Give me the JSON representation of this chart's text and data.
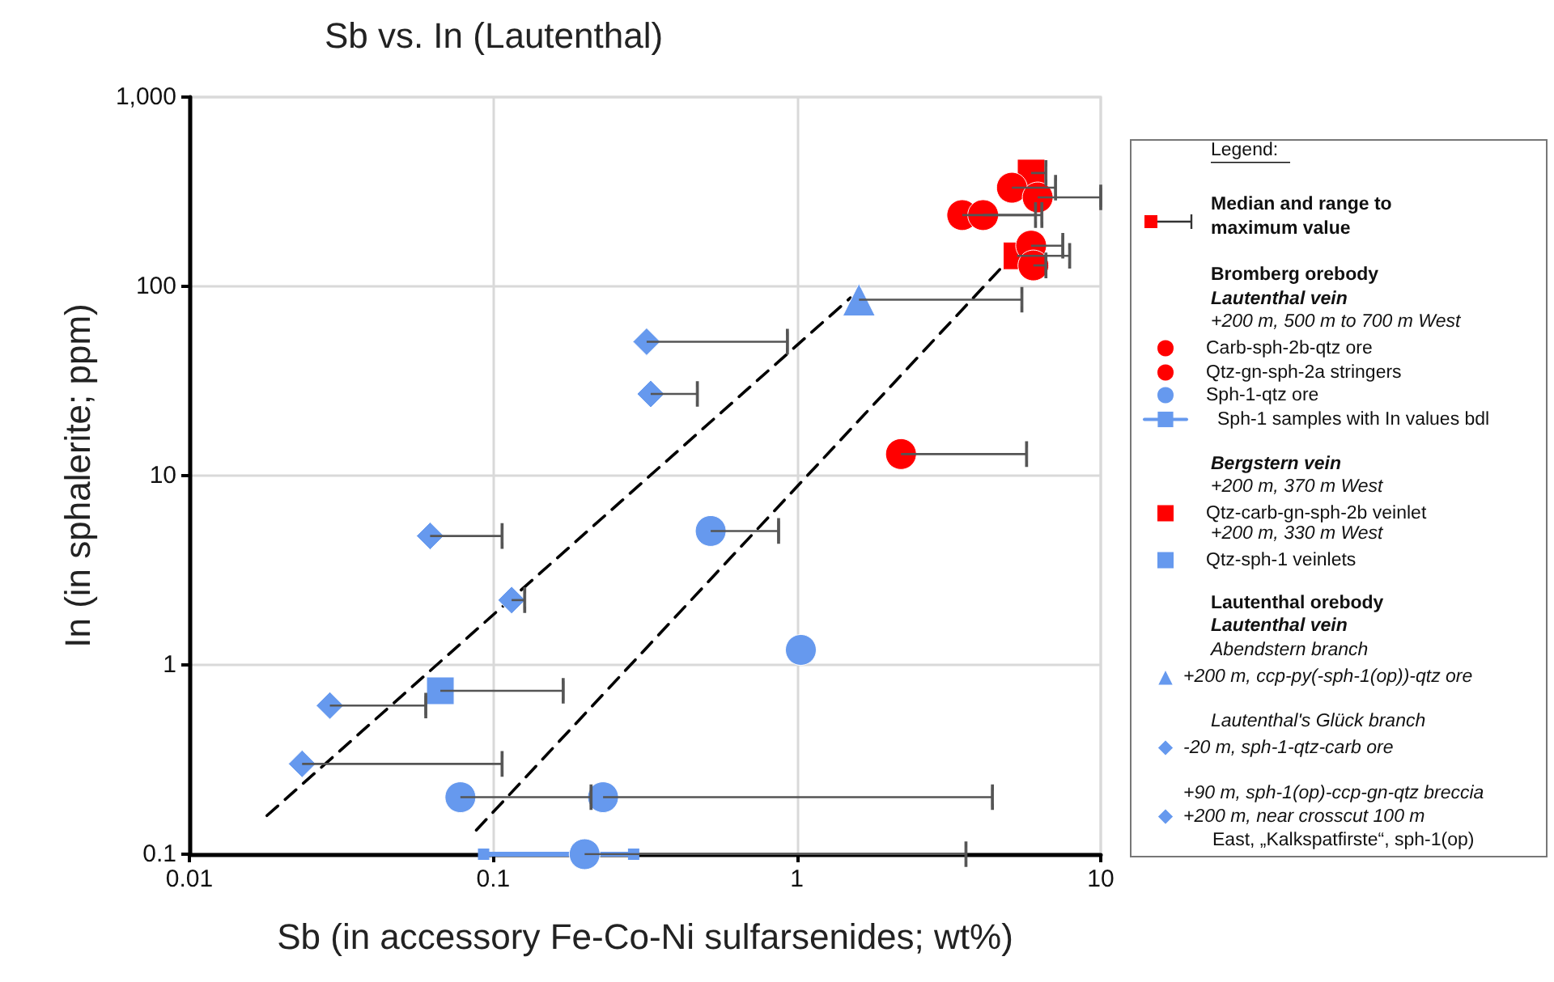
{
  "chart_data": {
    "type": "scatter",
    "title": "Sb vs. In (Lautenthal)",
    "xlabel": "Sb (in accessory Fe-Co-Ni sulfarsenides; wt%)",
    "ylabel": "In (in sphalerite; ppm)",
    "legend_title": "Legend:",
    "annotations": [
      "Median and range to maximum value",
      "Bromberg orebody",
      "Lautenthal vein",
      "+200 m, 500 m to 700 m West",
      "Bergstern vein",
      "+200 m, 370 m West",
      "+200 m, 330 m West",
      "Lautenthal orebody",
      "Lautenthal vein",
      "Abendstern branch",
      "Lautenthal's Glück branch"
    ],
    "log": "xy",
    "grid": true,
    "legend": "right",
    "xlim": [
      0.01,
      10
    ],
    "xticks": [
      0.01,
      0.1,
      1,
      10
    ],
    "ylim": [
      0.1,
      1000
    ],
    "yticks": [
      0.1,
      1,
      10,
      100,
      {
        "value": 1000,
        "label": "1,000"
      }
    ],
    "series": [
      {
        "type": "line",
        "color": "#000000",
        "marker": "none",
        "line_style": "dashed",
        "x": [
          0.018,
          1.5
        ],
        "values": [
          0.16,
          87
        ]
      },
      {
        "type": "line",
        "color": "#000000",
        "marker": "none",
        "line_style": "dashed",
        "x": [
          0.088,
          4.7
        ],
        "values": [
          0.134,
          125
        ]
      },
      {
        "name": "Carb-sph-2b-qtz ore",
        "color": "#ff0000",
        "marker": "circle",
        "x": [
          5.1,
          6.2,
          3.5,
          4.1,
          5.9,
          6.0
        ],
        "values": [
          332,
          295,
          238,
          238,
          164,
          129
        ],
        "xerrors": [
          [
            5.1,
            7.1
          ],
          [
            6.2,
            10
          ],
          [
            3.5,
            6.1
          ],
          [
            4.1,
            6.4
          ],
          [
            5.9,
            7.5
          ],
          [
            6.0,
            6.6
          ]
        ]
      },
      {
        "name": "Qtz-gn-sph-2a stringers",
        "color": "#ff0000",
        "marker": "circle",
        "x": [
          2.2
        ],
        "values": [
          13
        ],
        "xerrors": [
          [
            2.2,
            5.7
          ]
        ]
      },
      {
        "name": "Sph-1-qtz ore",
        "color": "#6699ee",
        "marker": "circle",
        "x": [
          0.52,
          1.03,
          0.078,
          0.23,
          0.2
        ],
        "values": [
          5.1,
          1.2,
          0.2,
          0.2,
          0.1
        ],
        "xerrors": [
          [
            0.52,
            0.87
          ],
          null,
          [
            0.078,
            0.21
          ],
          [
            0.23,
            4.4
          ],
          [
            0.2,
            3.6
          ]
        ]
      },
      {
        "name": "Sph-1 samples with In values bdl",
        "type": "line",
        "color": "#6699ee",
        "marker": "square",
        "line_style": "solid",
        "x": [
          0.093,
          0.29
        ],
        "values": [
          0.1,
          0.1
        ]
      },
      {
        "name": "Qtz-carb-gn-sph-2b veinlet",
        "color": "#ff0000",
        "marker": "square",
        "x": [
          5.9,
          5.3
        ],
        "values": [
          397,
          145
        ],
        "xerrors": [
          [
            5.9,
            6.6
          ],
          [
            5.3,
            7.9
          ]
        ]
      },
      {
        "name": "Qtz-sph-1 veinlets",
        "color": "#6699ee",
        "marker": "square",
        "x": [
          0.067
        ],
        "values": [
          0.73
        ],
        "xerrors": [
          [
            0.067,
            0.17
          ]
        ]
      },
      {
        "name": "+200 m, ccp-py(-sph-1(op))-qtz ore",
        "color": "#6699ee",
        "marker": "triangle",
        "x": [
          1.6
        ],
        "values": [
          85
        ],
        "xerrors": [
          [
            1.6,
            5.5
          ]
        ]
      },
      {
        "name": "-20 m, sph-1-qtz-carb ore",
        "color": "#6699ee",
        "marker": "diamond",
        "x": [
          0.062,
          0.115,
          0.029,
          0.0235
        ],
        "values": [
          4.8,
          2.2,
          0.61,
          0.3
        ],
        "xerrors": [
          [
            0.062,
            0.107
          ],
          [
            0.115,
            0.127
          ],
          [
            0.029,
            0.06
          ],
          [
            0.0235,
            0.107
          ]
        ]
      },
      {
        "name": "+90 m, sph-1(op)-ccp-gn-qtz breccia\n+200 m, near crosscut 100 m\nEast, „Kalkspatfirste“, sph-1(op)",
        "color": "#6699ee",
        "marker": "diamond",
        "x": [
          0.32,
          0.33
        ],
        "values": [
          51,
          27
        ],
        "xerrors": [
          [
            0.32,
            0.93
          ],
          [
            0.33,
            0.47
          ]
        ]
      }
    ]
  }
}
